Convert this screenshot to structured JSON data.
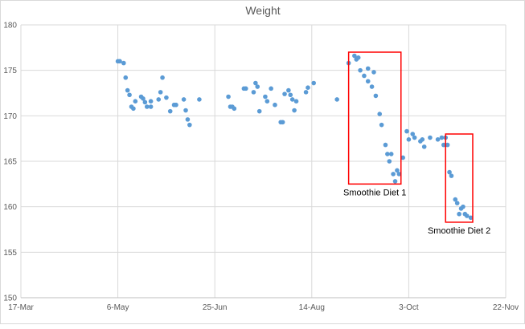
{
  "chart_data": {
    "type": "scatter",
    "title": "Weight",
    "xlabel": "",
    "ylabel": "",
    "x_axis": {
      "type": "date",
      "range": [
        "2014-03-17",
        "2014-11-22"
      ],
      "ticks": [
        "2014-03-17",
        "2014-05-06",
        "2014-06-25",
        "2014-08-14",
        "2014-10-03",
        "2014-11-22"
      ],
      "tick_labels": [
        "17-Mar",
        "6-May",
        "25-Jun",
        "14-Aug",
        "3-Oct",
        "22-Nov"
      ]
    },
    "y_axis": {
      "range": [
        150,
        180
      ],
      "ticks": [
        150,
        155,
        160,
        165,
        170,
        175,
        180
      ]
    },
    "grid": true,
    "marker_color": "#5b9bd5",
    "series": [
      {
        "name": "",
        "points": [
          [
            "2014-05-06",
            176.0
          ],
          [
            "2014-05-07",
            176.0
          ],
          [
            "2014-05-09",
            175.8
          ],
          [
            "2014-05-10",
            174.2
          ],
          [
            "2014-05-11",
            172.8
          ],
          [
            "2014-05-12",
            172.3
          ],
          [
            "2014-05-13",
            171.0
          ],
          [
            "2014-05-14",
            170.8
          ],
          [
            "2014-05-15",
            171.6
          ],
          [
            "2014-05-18",
            172.1
          ],
          [
            "2014-05-19",
            171.9
          ],
          [
            "2014-05-20",
            171.5
          ],
          [
            "2014-05-21",
            171.0
          ],
          [
            "2014-05-23",
            171.0
          ],
          [
            "2014-05-23",
            171.6
          ],
          [
            "2014-05-27",
            171.8
          ],
          [
            "2014-05-28",
            172.6
          ],
          [
            "2014-05-29",
            174.2
          ],
          [
            "2014-05-31",
            172.0
          ],
          [
            "2014-06-02",
            170.5
          ],
          [
            "2014-06-04",
            171.2
          ],
          [
            "2014-06-05",
            171.2
          ],
          [
            "2014-06-09",
            171.8
          ],
          [
            "2014-06-10",
            170.6
          ],
          [
            "2014-06-11",
            169.6
          ],
          [
            "2014-06-12",
            169.0
          ],
          [
            "2014-06-17",
            171.8
          ],
          [
            "2014-07-02",
            172.1
          ],
          [
            "2014-07-03",
            171.0
          ],
          [
            "2014-07-04",
            171.0
          ],
          [
            "2014-07-05",
            170.8
          ],
          [
            "2014-07-10",
            173.0
          ],
          [
            "2014-07-11",
            173.0
          ],
          [
            "2014-07-15",
            172.6
          ],
          [
            "2014-07-16",
            173.6
          ],
          [
            "2014-07-17",
            173.2
          ],
          [
            "2014-07-18",
            170.5
          ],
          [
            "2014-07-21",
            172.1
          ],
          [
            "2014-07-22",
            171.6
          ],
          [
            "2014-07-24",
            173.0
          ],
          [
            "2014-07-26",
            171.2
          ],
          [
            "2014-07-29",
            169.3
          ],
          [
            "2014-07-30",
            169.3
          ],
          [
            "2014-07-31",
            172.4
          ],
          [
            "2014-08-02",
            172.8
          ],
          [
            "2014-08-03",
            172.3
          ],
          [
            "2014-08-04",
            171.8
          ],
          [
            "2014-08-05",
            170.6
          ],
          [
            "2014-08-06",
            171.6
          ],
          [
            "2014-08-11",
            172.6
          ],
          [
            "2014-08-12",
            173.1
          ],
          [
            "2014-08-15",
            173.6
          ],
          [
            "2014-08-27",
            171.8
          ],
          [
            "2014-09-02",
            175.8
          ],
          [
            "2014-09-05",
            176.6
          ],
          [
            "2014-09-06",
            176.2
          ],
          [
            "2014-09-07",
            176.4
          ],
          [
            "2014-09-08",
            175.0
          ],
          [
            "2014-09-10",
            174.4
          ],
          [
            "2014-09-12",
            175.2
          ],
          [
            "2014-09-12",
            173.8
          ],
          [
            "2014-09-14",
            173.2
          ],
          [
            "2014-09-15",
            174.8
          ],
          [
            "2014-09-16",
            172.2
          ],
          [
            "2014-09-18",
            170.2
          ],
          [
            "2014-09-19",
            169.0
          ],
          [
            "2014-09-21",
            166.8
          ],
          [
            "2014-09-22",
            165.8
          ],
          [
            "2014-09-23",
            165.0
          ],
          [
            "2014-09-24",
            165.8
          ],
          [
            "2014-09-25",
            163.6
          ],
          [
            "2014-09-26",
            162.8
          ],
          [
            "2014-09-27",
            164.0
          ],
          [
            "2014-09-28",
            163.6
          ],
          [
            "2014-09-30",
            165.4
          ],
          [
            "2014-10-02",
            168.3
          ],
          [
            "2014-10-03",
            167.4
          ],
          [
            "2014-10-05",
            168.0
          ],
          [
            "2014-10-06",
            167.6
          ],
          [
            "2014-10-09",
            167.2
          ],
          [
            "2014-10-10",
            167.4
          ],
          [
            "2014-10-11",
            166.6
          ],
          [
            "2014-10-14",
            167.6
          ],
          [
            "2014-10-18",
            167.4
          ],
          [
            "2014-10-20",
            167.6
          ],
          [
            "2014-10-21",
            166.8
          ],
          [
            "2014-10-22",
            167.6
          ],
          [
            "2014-10-23",
            166.8
          ],
          [
            "2014-10-24",
            163.8
          ],
          [
            "2014-10-25",
            163.4
          ],
          [
            "2014-10-27",
            160.8
          ],
          [
            "2014-10-28",
            160.4
          ],
          [
            "2014-10-29",
            159.2
          ],
          [
            "2014-10-30",
            159.8
          ],
          [
            "2014-10-31",
            160.0
          ],
          [
            "2014-11-01",
            159.2
          ],
          [
            "2014-11-02",
            159.0
          ],
          [
            "2014-11-04",
            158.8
          ]
        ]
      }
    ],
    "annotations": [
      {
        "text": "Smoothie Diet 1",
        "box": {
          "x_start": "2014-09-02",
          "x_end": "2014-09-29",
          "y_min": 162.5,
          "y_max": 177.0
        },
        "color": "#ff0000"
      },
      {
        "text": "Smoothie Diet 2",
        "box": {
          "x_start": "2014-10-22",
          "x_end": "2014-11-05",
          "y_min": 158.3,
          "y_max": 168.0
        },
        "color": "#ff0000"
      }
    ]
  }
}
